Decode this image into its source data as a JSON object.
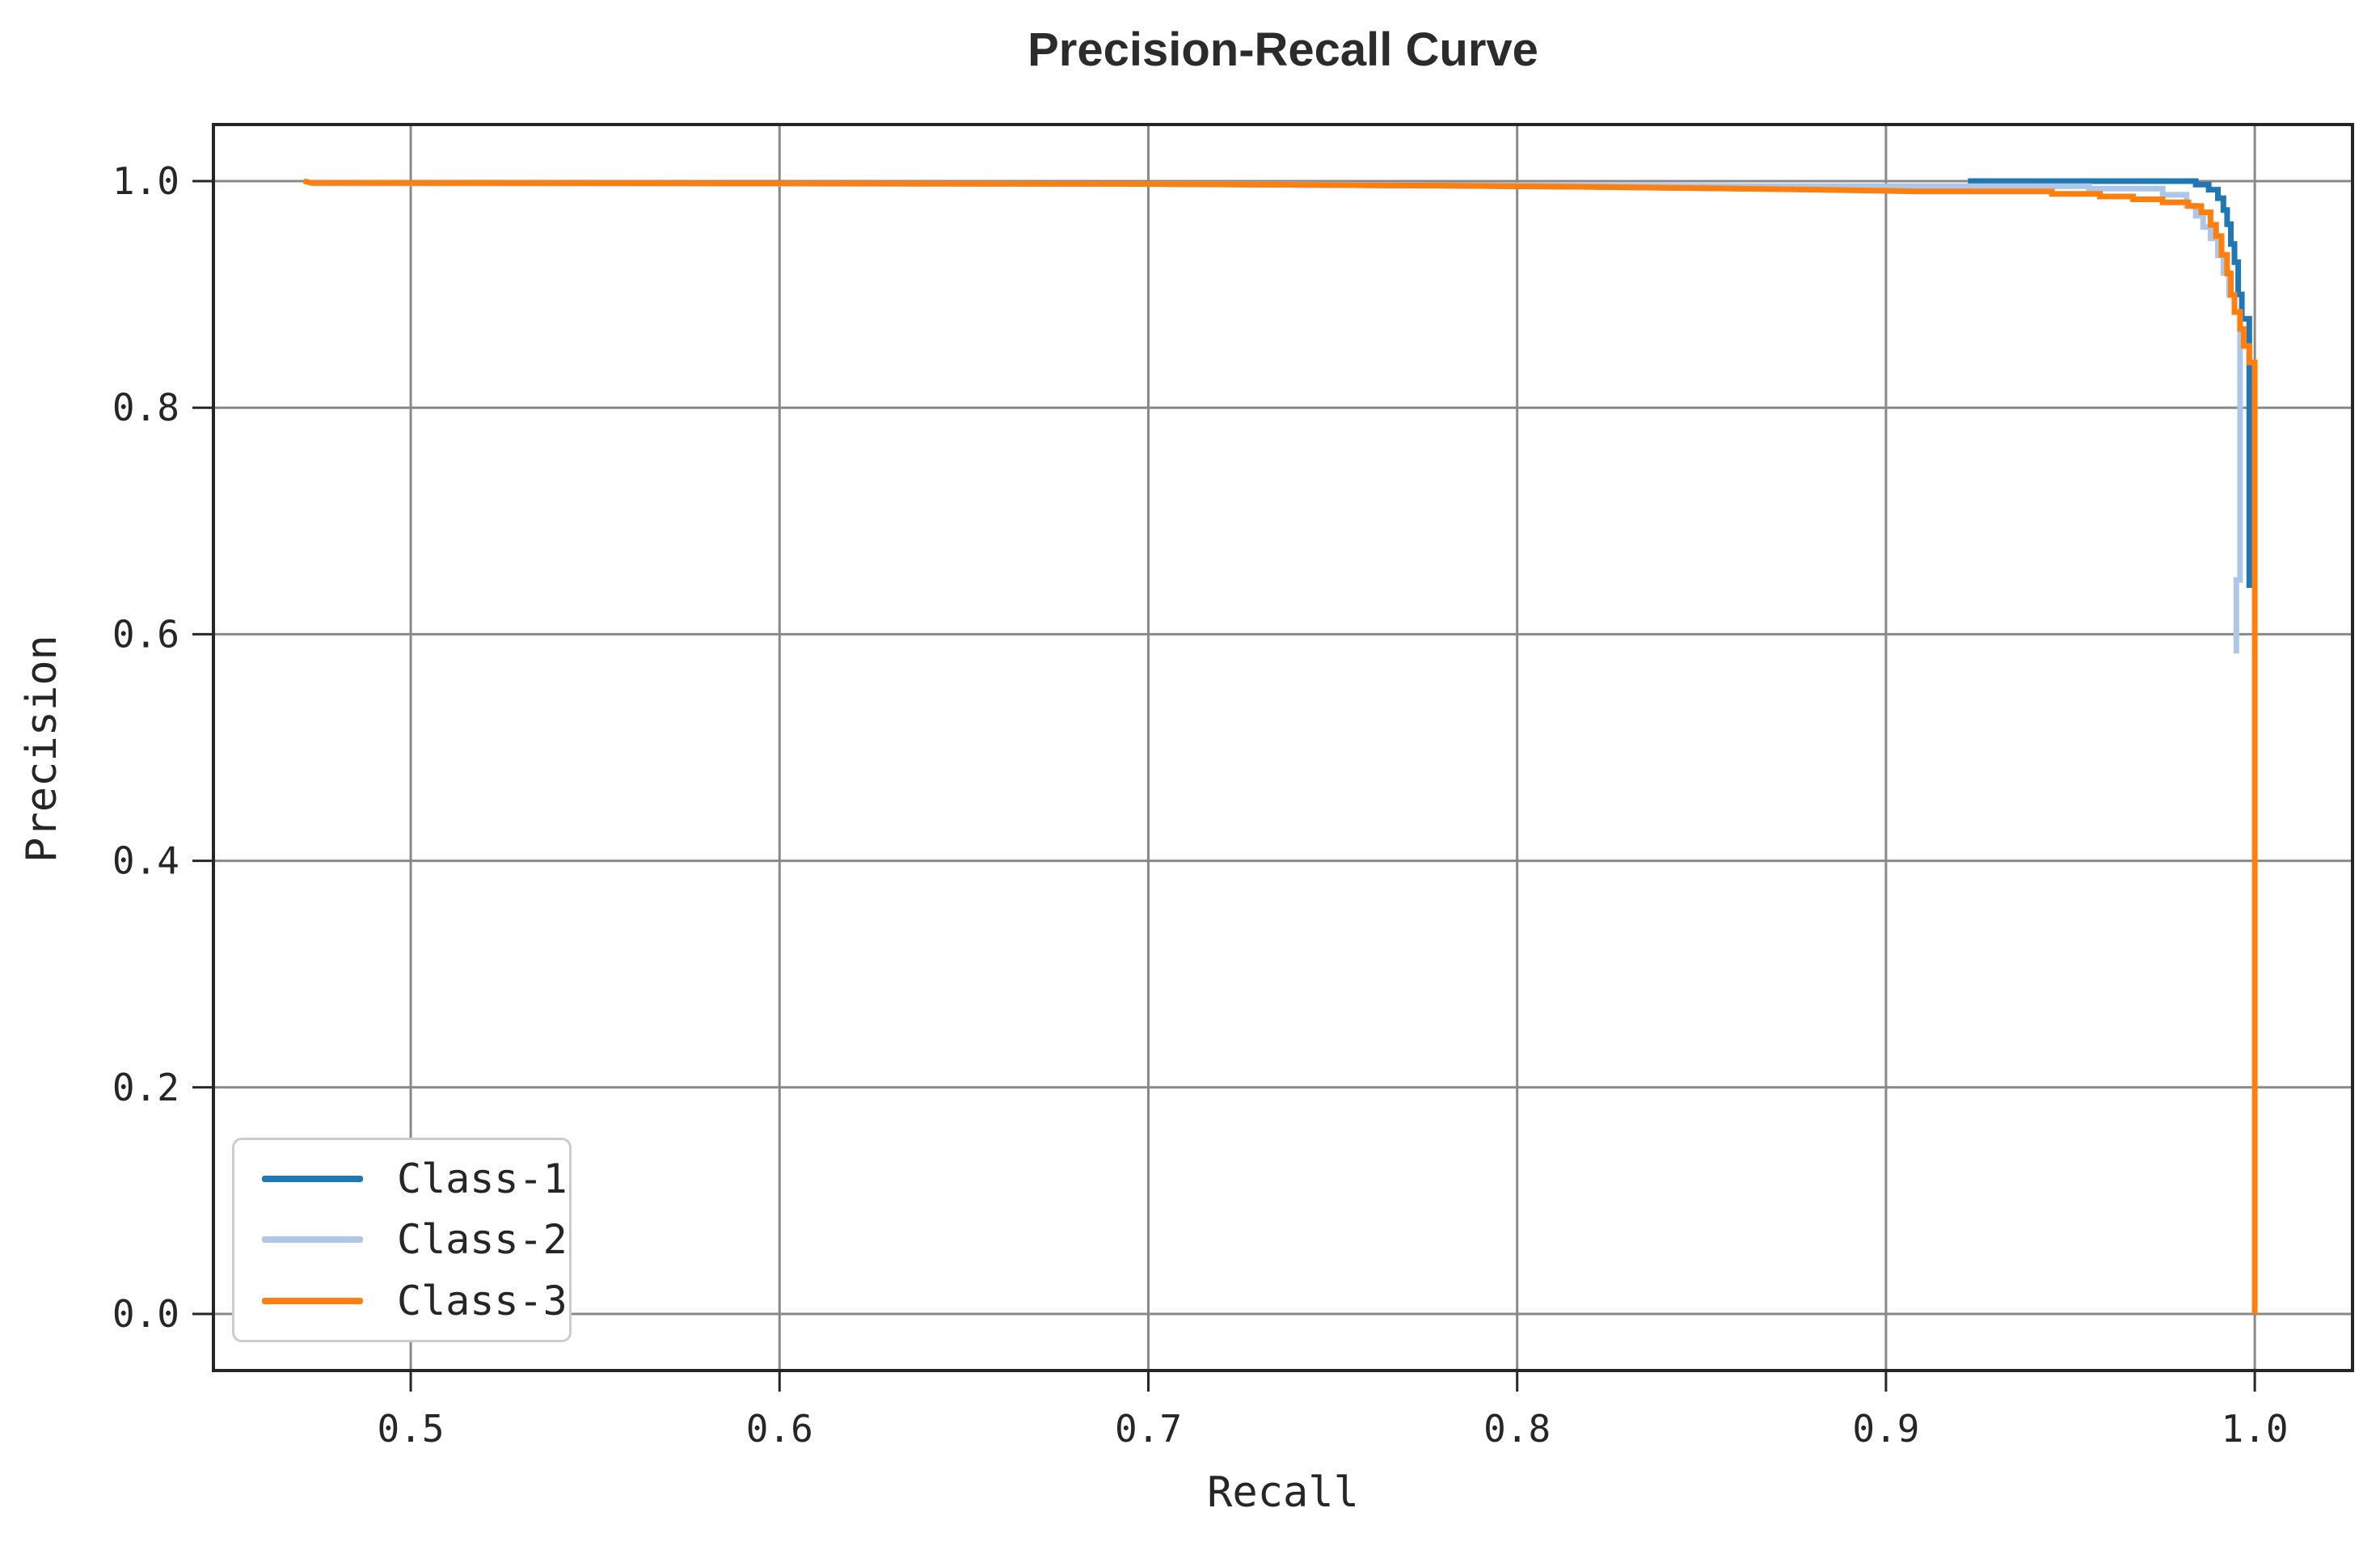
{
  "chart_data": {
    "type": "line",
    "title": "Precision-Recall Curve",
    "xlabel": "Recall",
    "ylabel": "Precision",
    "xlim": [
      0.4465,
      1.0265
    ],
    "ylim": [
      -0.05,
      1.05
    ],
    "xticks": [
      0.5,
      0.6,
      0.7,
      0.8,
      0.9,
      1.0
    ],
    "yticks": [
      0.0,
      0.2,
      0.4,
      0.6,
      0.8,
      1.0
    ],
    "grid": true,
    "legend_position": "lower left",
    "colors": {
      "background": "#ffffff",
      "grid": "#898989",
      "spine": "#262626",
      "text": "#262626",
      "legend_border": "#cccccc"
    },
    "series": [
      {
        "name": "Class-1",
        "color": "#1f77b4",
        "points": [
          [
            0.473,
            0.9985
          ],
          [
            0.6,
            0.998
          ],
          [
            0.7,
            0.9975
          ],
          [
            0.78,
            0.996
          ],
          [
            0.82,
            0.995
          ],
          [
            0.86,
            0.9935
          ],
          [
            0.923,
            0.9935
          ],
          [
            0.923,
            1.0
          ],
          [
            0.984,
            1.0
          ],
          [
            0.984,
            0.997
          ],
          [
            0.9875,
            0.997
          ],
          [
            0.9875,
            0.9925
          ],
          [
            0.99,
            0.9925
          ],
          [
            0.99,
            0.985
          ],
          [
            0.9915,
            0.985
          ],
          [
            0.9915,
            0.9745
          ],
          [
            0.9925,
            0.9745
          ],
          [
            0.9925,
            0.962
          ],
          [
            0.9935,
            0.962
          ],
          [
            0.9935,
            0.9445
          ],
          [
            0.9945,
            0.9445
          ],
          [
            0.9945,
            0.9285
          ],
          [
            0.9955,
            0.9285
          ],
          [
            0.9955,
            0.9
          ],
          [
            0.9965,
            0.9
          ],
          [
            0.9965,
            0.8785
          ],
          [
            0.9985,
            0.8785
          ],
          [
            0.9985,
            0.641
          ]
        ]
      },
      {
        "name": "Class-2",
        "color": "#aec7e8",
        "points": [
          [
            0.473,
            0.998
          ],
          [
            0.7,
            0.9975
          ],
          [
            0.82,
            0.996
          ],
          [
            0.88,
            0.9955
          ],
          [
            0.955,
            0.9955
          ],
          [
            0.955,
            0.9935
          ],
          [
            0.975,
            0.9935
          ],
          [
            0.975,
            0.988
          ],
          [
            0.9815,
            0.988
          ],
          [
            0.9815,
            0.9785
          ],
          [
            0.984,
            0.9785
          ],
          [
            0.984,
            0.9695
          ],
          [
            0.986,
            0.9695
          ],
          [
            0.986,
            0.9595
          ],
          [
            0.988,
            0.9595
          ],
          [
            0.988,
            0.9495
          ],
          [
            0.99,
            0.9495
          ],
          [
            0.99,
            0.9345
          ],
          [
            0.9915,
            0.9345
          ],
          [
            0.9915,
            0.919
          ],
          [
            0.993,
            0.919
          ],
          [
            0.993,
            0.8995
          ],
          [
            0.9945,
            0.8995
          ],
          [
            0.9945,
            0.8845
          ],
          [
            0.996,
            0.8845
          ],
          [
            0.996,
            0.648
          ],
          [
            0.995,
            0.648
          ],
          [
            0.995,
            0.583
          ]
        ]
      },
      {
        "name": "Class-3",
        "color": "#ff7f0e",
        "points": [
          [
            0.471,
            1.0
          ],
          [
            0.473,
            0.9985
          ],
          [
            0.6,
            0.998
          ],
          [
            0.7,
            0.9975
          ],
          [
            0.78,
            0.996
          ],
          [
            0.82,
            0.995
          ],
          [
            0.86,
            0.9935
          ],
          [
            0.9,
            0.9915
          ],
          [
            0.908,
            0.991
          ],
          [
            0.945,
            0.991
          ],
          [
            0.945,
            0.9888
          ],
          [
            0.958,
            0.9888
          ],
          [
            0.958,
            0.9865
          ],
          [
            0.967,
            0.9865
          ],
          [
            0.967,
            0.984
          ],
          [
            0.975,
            0.984
          ],
          [
            0.975,
            0.9813
          ],
          [
            0.982,
            0.9813
          ],
          [
            0.982,
            0.978
          ],
          [
            0.9855,
            0.978
          ],
          [
            0.9855,
            0.9725
          ],
          [
            0.988,
            0.9725
          ],
          [
            0.988,
            0.9615
          ],
          [
            0.9895,
            0.9615
          ],
          [
            0.9895,
            0.9515
          ],
          [
            0.991,
            0.9515
          ],
          [
            0.991,
            0.935
          ],
          [
            0.9925,
            0.935
          ],
          [
            0.9925,
            0.9185
          ],
          [
            0.9935,
            0.9185
          ],
          [
            0.9935,
            0.8995
          ],
          [
            0.9945,
            0.8995
          ],
          [
            0.9945,
            0.8845
          ],
          [
            0.996,
            0.8845
          ],
          [
            0.996,
            0.8695
          ],
          [
            0.997,
            0.8695
          ],
          [
            0.997,
            0.8545
          ],
          [
            0.9985,
            0.8545
          ],
          [
            0.9985,
            0.84
          ],
          [
            1.0,
            0.84
          ],
          [
            1.0,
            0.0
          ]
        ]
      }
    ]
  }
}
